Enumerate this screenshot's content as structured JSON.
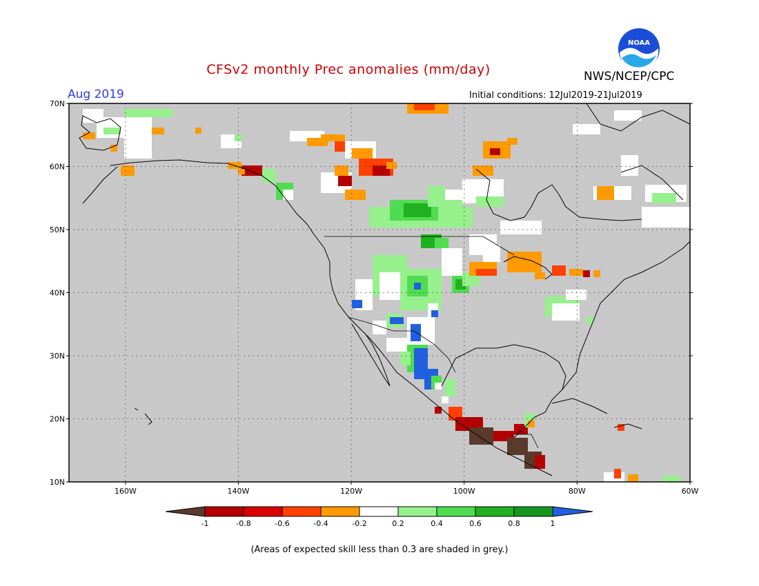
{
  "header": {
    "title": "CFSv2 monthly Prec anomalies (mm/day)",
    "agency": "NWS/NCEP/CPC",
    "logo_text": "NOAA",
    "valid_month": "Aug 2019",
    "initial_conditions": "Initial conditions: 12Jul2019-21Jul2019"
  },
  "map": {
    "lat_labels": [
      "70N",
      "60N",
      "50N",
      "40N",
      "30N",
      "20N",
      "10N"
    ],
    "lat_values": [
      70,
      60,
      50,
      40,
      30,
      20,
      10
    ],
    "lon_labels": [
      "160W",
      "140W",
      "120W",
      "100W",
      "80W",
      "60W"
    ],
    "lon_values": [
      -160,
      -140,
      -120,
      -100,
      -80,
      -60
    ],
    "extent": {
      "lon_min": -170,
      "lon_max": -60,
      "lat_min": 10,
      "lat_max": 70
    },
    "grid": "dotted",
    "land_color": "#c8c8c8"
  },
  "colorbar": {
    "labels": [
      "-1",
      "-0.8",
      "-0.6",
      "-0.4",
      "-0.2",
      "0.2",
      "0.4",
      "0.6",
      "0.8",
      "1"
    ],
    "colors": [
      "#5a3a2c",
      "#b40000",
      "#d90000",
      "#ff4000",
      "#ff9a00",
      "#ffffff",
      "#96f08c",
      "#50dc50",
      "#20b020",
      "#15961e",
      "#2060e0"
    ]
  },
  "footnote": "(Areas of expected skill less than 0.3 are shaded in grey.)"
}
